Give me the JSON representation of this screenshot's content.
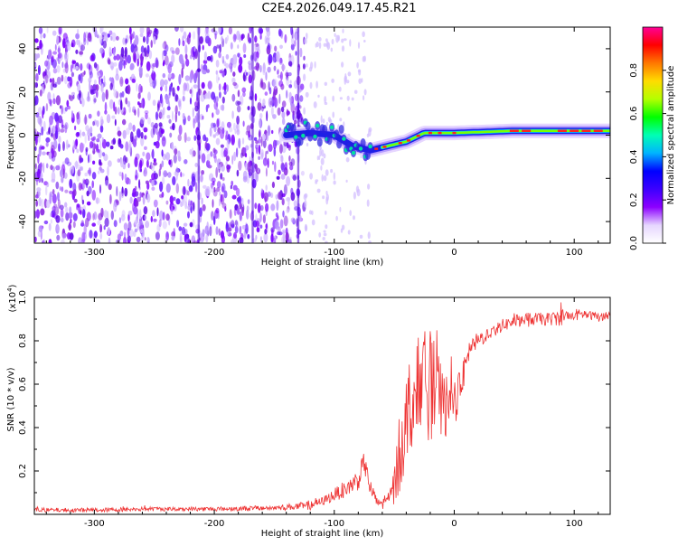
{
  "title": "C2E4.2026.049.17.45.R21",
  "chart_data": [
    {
      "type": "heatmap",
      "name": "spectrogram",
      "xlabel": "Height of straight line (km)",
      "ylabel": "Frequency (Hz)",
      "xlim": [
        -350,
        130
      ],
      "ylim": [
        -50,
        50
      ],
      "xticks": [
        -300,
        -200,
        -100,
        0,
        100
      ],
      "yticks": [
        -40,
        -20,
        0,
        20,
        40
      ],
      "xtick_labels": [
        "-300",
        "-200",
        "-100",
        "0",
        "100"
      ],
      "ytick_labels": [
        "-40",
        "-20",
        "0",
        "20",
        "40"
      ],
      "colorbar": {
        "label": "Normalized spectral amplitude",
        "ticks": [
          0.0,
          0.2,
          0.4,
          0.6,
          0.8
        ],
        "tick_labels": [
          "0.0",
          "0.2",
          "0.4",
          "0.6",
          "0.8"
        ],
        "range": [
          0,
          1
        ],
        "colors": [
          "#ffffff",
          "#e6d6ff",
          "#8c00ff",
          "#3c00ff",
          "#0000ff",
          "#00b4ff",
          "#00ffb4",
          "#00ff00",
          "#b4ff00",
          "#ffdc00",
          "#ff7800",
          "#ff0000",
          "#ff0096"
        ]
      },
      "noise_region_x": [
        -350,
        -125
      ],
      "sparse_region_x": [
        -125,
        -70
      ],
      "signal_track": [
        {
          "x": -140,
          "y": 0
        },
        {
          "x": -120,
          "y": 1
        },
        {
          "x": -100,
          "y": 0
        },
        {
          "x": -85,
          "y": -5
        },
        {
          "x": -70,
          "y": -7
        },
        {
          "x": -55,
          "y": -5
        },
        {
          "x": -40,
          "y": -3
        },
        {
          "x": -25,
          "y": 1
        },
        {
          "x": -10,
          "y": 1
        },
        {
          "x": 0,
          "y": 1
        },
        {
          "x": 50,
          "y": 2
        },
        {
          "x": 100,
          "y": 2
        },
        {
          "x": 130,
          "y": 2
        }
      ]
    },
    {
      "type": "line",
      "name": "snr",
      "xlabel": "Height of straight line (km)",
      "ylabel": "SNR (10 * v/v)",
      "scale_label": "(x10",
      "scale_exponent": "4",
      "scale_close": ")",
      "xlim": [
        -350,
        130
      ],
      "ylim": [
        0,
        1.0
      ],
      "xticks": [
        -300,
        -200,
        -100,
        0,
        100
      ],
      "xtick_labels": [
        "-300",
        "-200",
        "-100",
        "0",
        "100"
      ],
      "yticks": [
        0.2,
        0.4,
        0.6,
        0.8,
        1.0
      ],
      "ytick_labels": [
        "0.2",
        "0.4",
        "0.6",
        "0.8",
        "1.0"
      ],
      "color": "#ee3333",
      "series": [
        {
          "name": "SNR",
          "x": [
            -350,
            -300,
            -250,
            -200,
            -150,
            -120,
            -110,
            -100,
            -90,
            -80,
            -75,
            -70,
            -65,
            -60,
            -55,
            -50,
            -45,
            -40,
            -35,
            -30,
            -25,
            -20,
            -15,
            -10,
            -5,
            0,
            5,
            10,
            15,
            20,
            30,
            40,
            50,
            60,
            70,
            80,
            90,
            100,
            110,
            120,
            130
          ],
          "y": [
            0.02,
            0.02,
            0.025,
            0.025,
            0.03,
            0.04,
            0.06,
            0.09,
            0.12,
            0.16,
            0.24,
            0.12,
            0.06,
            0.05,
            0.07,
            0.12,
            0.3,
            0.45,
            0.55,
            0.6,
            0.65,
            0.6,
            0.55,
            0.5,
            0.5,
            0.52,
            0.58,
            0.7,
            0.78,
            0.8,
            0.84,
            0.87,
            0.89,
            0.9,
            0.9,
            0.9,
            0.91,
            0.92,
            0.92,
            0.91,
            0.92
          ],
          "noise": [
            0.01,
            0.01,
            0.01,
            0.01,
            0.012,
            0.02,
            0.02,
            0.03,
            0.04,
            0.05,
            0.05,
            0.04,
            0.03,
            0.03,
            0.05,
            0.1,
            0.2,
            0.22,
            0.22,
            0.22,
            0.2,
            0.25,
            0.22,
            0.18,
            0.15,
            0.12,
            0.08,
            0.06,
            0.04,
            0.04,
            0.03,
            0.03,
            0.03,
            0.03,
            0.03,
            0.03,
            0.04,
            0.03,
            0.02,
            0.02,
            0.02
          ]
        }
      ]
    }
  ]
}
